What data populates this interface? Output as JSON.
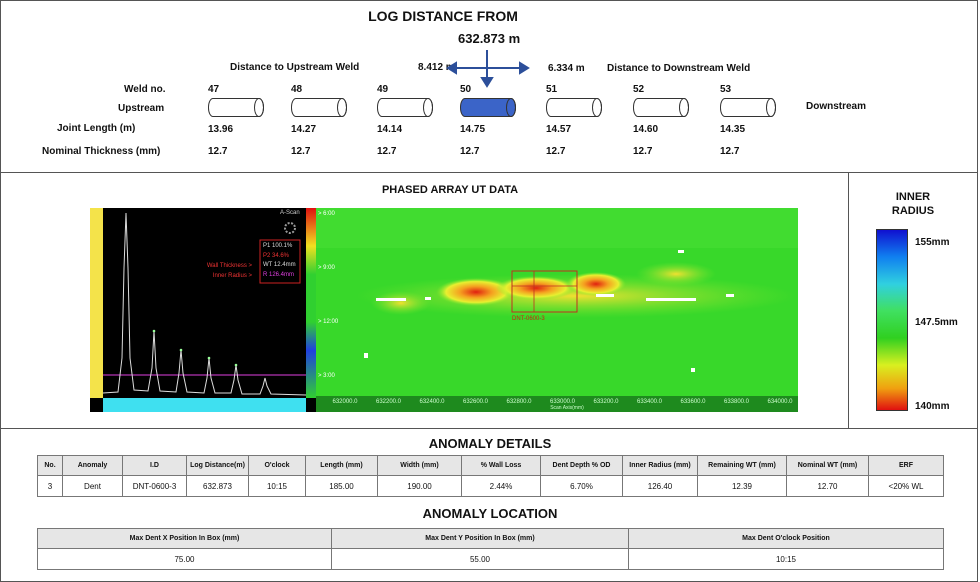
{
  "header": {
    "title": "LOG DISTANCE FROM",
    "log_distance": "632.873 m",
    "upstream_label": "Distance to Upstream Weld",
    "upstream_distance": "8.412 m",
    "downstream_distance": "6.334 m",
    "downstream_label": "Distance to Downstream Weld"
  },
  "welds": {
    "row_labels": {
      "weld_no": "Weld no.",
      "upstream": "Upstream",
      "joint_length": "Joint Length (m)",
      "nominal_thickness": "Nominal Thickness (mm)"
    },
    "downstream": "Downstream",
    "items": [
      {
        "no": "47",
        "joint_length": "13.96",
        "thickness": "12.7",
        "color": "#ffffff"
      },
      {
        "no": "48",
        "joint_length": "14.27",
        "thickness": "12.7",
        "color": "#ffffff"
      },
      {
        "no": "49",
        "joint_length": "14.14",
        "thickness": "12.7",
        "color": "#ffffff"
      },
      {
        "no": "50",
        "joint_length": "14.75",
        "thickness": "12.7",
        "color": "#3b64c8"
      },
      {
        "no": "51",
        "joint_length": "14.57",
        "thickness": "12.7",
        "color": "#ffffff"
      },
      {
        "no": "52",
        "joint_length": "14.60",
        "thickness": "12.7",
        "color": "#ffffff"
      },
      {
        "no": "53",
        "joint_length": "14.35",
        "thickness": "12.7",
        "color": "#ffffff"
      }
    ]
  },
  "ut_data": {
    "title": "PHASED ARRAY UT DATA",
    "ascan": {
      "title": "A-Scan",
      "readout": [
        "P1 100.1%",
        "P2 34.6%",
        "WT 12.4mm",
        "R 126.4mm"
      ],
      "markers": [
        "Wall Thickness >",
        "Inner Radius >"
      ]
    },
    "scan": {
      "clock_labels": [
        "> 6:00",
        "> 9:00",
        "> 12:00",
        "> 3:00"
      ],
      "x_labels": [
        "632000.0",
        "632200.0",
        "632400.0",
        "632600.0",
        "632800.0",
        "633000.0",
        "633200.0",
        "633400.0",
        "633600.0",
        "633800.0",
        "634000.0"
      ],
      "x_axis_label": "Scan Axis(mm)",
      "defect_label": "DNT-0600-3"
    }
  },
  "legend": {
    "title": "INNER RADIUS",
    "labels": [
      "155mm",
      "147.5mm",
      "140mm"
    ]
  },
  "anomaly_details": {
    "title": "ANOMALY DETAILS",
    "headers": [
      "No.",
      "Anomaly",
      "I.D",
      "Log Distance(m)",
      "O'clock",
      "Length (mm)",
      "Width (mm)",
      "% Wall Loss",
      "Dent Depth % OD",
      "Inner Radius (mm)",
      "Remaining WT (mm)",
      "Nominal WT (mm)",
      "ERF"
    ],
    "rows": [
      [
        "3",
        "Dent",
        "DNT-0600-3",
        "632.873",
        "10:15",
        "185.00",
        "190.00",
        "2.44%",
        "6.70%",
        "126.40",
        "12.39",
        "12.70",
        "<20% WL"
      ]
    ]
  },
  "anomaly_location": {
    "title": "ANOMALY LOCATION",
    "headers": [
      "Max Dent X Position In Box (mm)",
      "Max Dent Y Position In Box (mm)",
      "Max Dent O'clock Position"
    ],
    "rows": [
      [
        "75.00",
        "55.00",
        "10:15"
      ]
    ]
  }
}
